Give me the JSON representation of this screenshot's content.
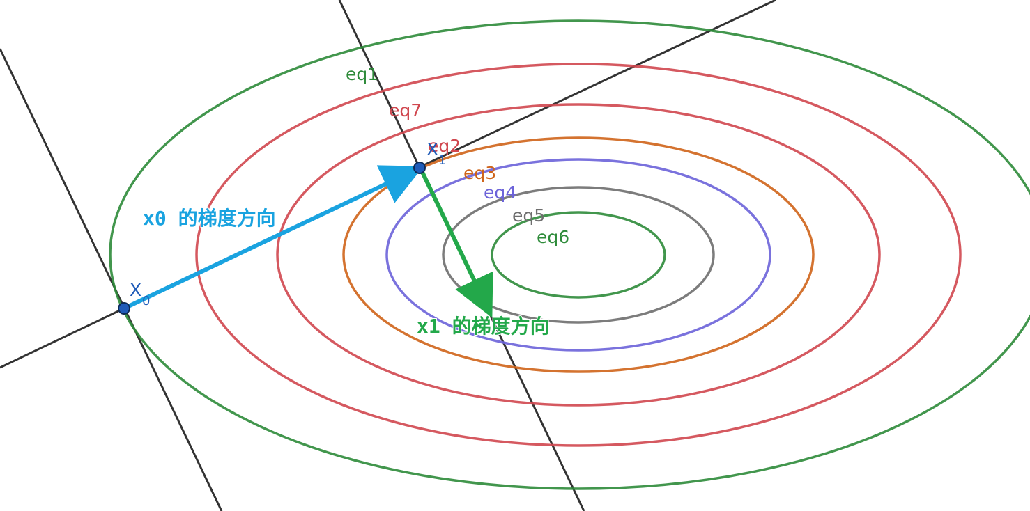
{
  "ellipses": [
    {
      "name": "eq1",
      "label": "eq1",
      "color": "#2e8b3a"
    },
    {
      "name": "eq7",
      "label": "eq7",
      "color": "#d0474f"
    },
    {
      "name": "eq2",
      "label": "eq2",
      "color": "#d0474f"
    },
    {
      "name": "eq3",
      "label": "eq3",
      "color": "#cf6419"
    },
    {
      "name": "eq4",
      "label": "eq4",
      "color": "#6c63d9"
    },
    {
      "name": "eq5",
      "label": "eq5",
      "color": "#6e6e6e"
    },
    {
      "name": "eq6",
      "label": "eq6",
      "color": "#2e8b3a"
    }
  ],
  "points": {
    "x0": {
      "main": "X",
      "sub": "0",
      "color": "#1f5bb8"
    },
    "x1": {
      "main": "X",
      "sub": "1",
      "color": "#1f5bb8"
    }
  },
  "captions": {
    "x0_gradient": "x0 的梯度方向",
    "x1_gradient": "x1 的梯度方向"
  },
  "colors": {
    "x0_arrow": "#1aa3e0",
    "x1_arrow": "#23a84a",
    "guide_lines": "#333333",
    "point_fill": "#1f5bb8"
  }
}
